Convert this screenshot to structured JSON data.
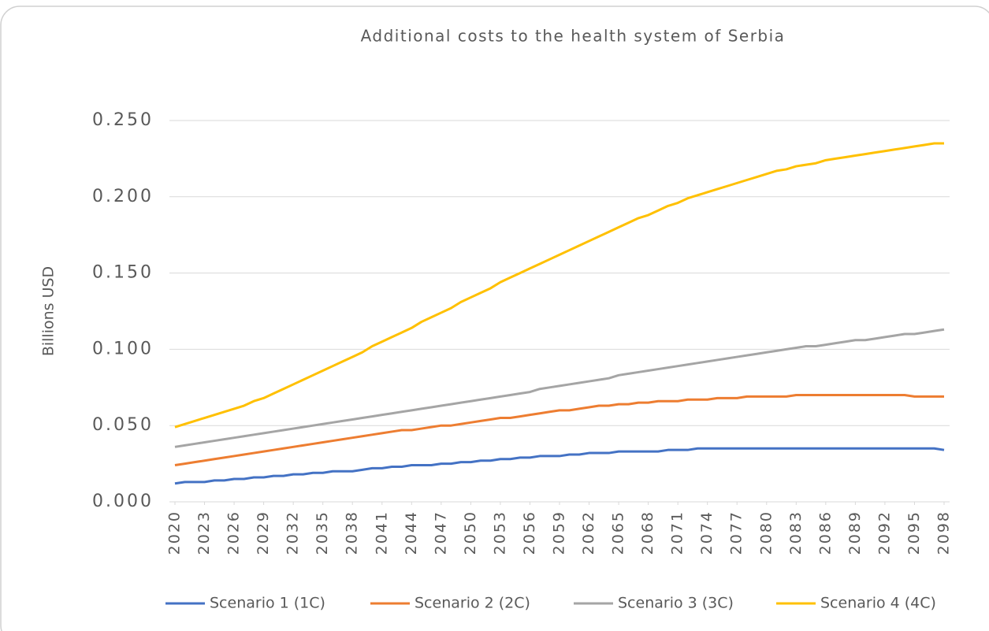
{
  "chart_data": {
    "type": "line",
    "title": "Additional costs to the health system of Serbia",
    "y_label": "Billions USD",
    "x": [
      2020,
      2021,
      2022,
      2023,
      2024,
      2025,
      2026,
      2027,
      2028,
      2029,
      2030,
      2031,
      2032,
      2033,
      2034,
      2035,
      2036,
      2037,
      2038,
      2039,
      2040,
      2041,
      2042,
      2043,
      2044,
      2045,
      2046,
      2047,
      2048,
      2049,
      2050,
      2051,
      2052,
      2053,
      2054,
      2055,
      2056,
      2057,
      2058,
      2059,
      2060,
      2061,
      2062,
      2063,
      2064,
      2065,
      2066,
      2067,
      2068,
      2069,
      2070,
      2071,
      2072,
      2073,
      2074,
      2075,
      2076,
      2077,
      2078,
      2079,
      2080,
      2081,
      2082,
      2083,
      2084,
      2085,
      2086,
      2087,
      2088,
      2089,
      2090,
      2091,
      2092,
      2093,
      2094,
      2095,
      2096,
      2097,
      2098
    ],
    "xlim": [
      2020,
      2098
    ],
    "xticks": [
      2020,
      2023,
      2026,
      2029,
      2032,
      2035,
      2038,
      2041,
      2044,
      2047,
      2050,
      2053,
      2056,
      2059,
      2062,
      2065,
      2068,
      2071,
      2074,
      2077,
      2080,
      2083,
      2086,
      2089,
      2092,
      2095,
      2098
    ],
    "ylim": [
      0,
      0.25
    ],
    "yticks": [
      {
        "value": 0,
        "label": "0.000"
      },
      {
        "value": 0.05,
        "label": "0.050"
      },
      {
        "value": 0.1,
        "label": "0.100"
      },
      {
        "value": 0.15,
        "label": "0.150"
      },
      {
        "value": 0.2,
        "label": "0.200"
      },
      {
        "value": 0.25,
        "label": "0.250"
      }
    ],
    "grid": true,
    "legend": "bottom",
    "series": [
      {
        "name": "Scenario 1 (1C)",
        "color": "#4472c4",
        "values": [
          0.012,
          0.013,
          0.013,
          0.013,
          0.014,
          0.014,
          0.015,
          0.015,
          0.016,
          0.016,
          0.017,
          0.017,
          0.018,
          0.018,
          0.019,
          0.019,
          0.02,
          0.02,
          0.02,
          0.021,
          0.022,
          0.022,
          0.023,
          0.023,
          0.024,
          0.024,
          0.024,
          0.025,
          0.025,
          0.026,
          0.026,
          0.027,
          0.027,
          0.028,
          0.028,
          0.029,
          0.029,
          0.03,
          0.03,
          0.03,
          0.031,
          0.031,
          0.032,
          0.032,
          0.032,
          0.033,
          0.033,
          0.033,
          0.033,
          0.033,
          0.034,
          0.034,
          0.034,
          0.035,
          0.035,
          0.035,
          0.035,
          0.035,
          0.035,
          0.035,
          0.035,
          0.035,
          0.035,
          0.035,
          0.035,
          0.035,
          0.035,
          0.035,
          0.035,
          0.035,
          0.035,
          0.035,
          0.035,
          0.035,
          0.035,
          0.035,
          0.035,
          0.035,
          0.034
        ]
      },
      {
        "name": "Scenario 2 (2C)",
        "color": "#ed7d31",
        "values": [
          0.024,
          0.025,
          0.026,
          0.027,
          0.028,
          0.029,
          0.03,
          0.031,
          0.032,
          0.033,
          0.034,
          0.035,
          0.036,
          0.037,
          0.038,
          0.039,
          0.04,
          0.041,
          0.042,
          0.043,
          0.044,
          0.045,
          0.046,
          0.047,
          0.047,
          0.048,
          0.049,
          0.05,
          0.05,
          0.051,
          0.052,
          0.053,
          0.054,
          0.055,
          0.055,
          0.056,
          0.057,
          0.058,
          0.059,
          0.06,
          0.06,
          0.061,
          0.062,
          0.063,
          0.063,
          0.064,
          0.064,
          0.065,
          0.065,
          0.066,
          0.066,
          0.066,
          0.067,
          0.067,
          0.067,
          0.068,
          0.068,
          0.068,
          0.069,
          0.069,
          0.069,
          0.069,
          0.069,
          0.07,
          0.07,
          0.07,
          0.07,
          0.07,
          0.07,
          0.07,
          0.07,
          0.07,
          0.07,
          0.07,
          0.07,
          0.069,
          0.069,
          0.069,
          0.069
        ]
      },
      {
        "name": "Scenario 3 (3C)",
        "color": "#a5a5a5",
        "values": [
          0.036,
          0.037,
          0.038,
          0.039,
          0.04,
          0.041,
          0.042,
          0.043,
          0.044,
          0.045,
          0.046,
          0.047,
          0.048,
          0.049,
          0.05,
          0.051,
          0.052,
          0.053,
          0.054,
          0.055,
          0.056,
          0.057,
          0.058,
          0.059,
          0.06,
          0.061,
          0.062,
          0.063,
          0.064,
          0.065,
          0.066,
          0.067,
          0.068,
          0.069,
          0.07,
          0.071,
          0.072,
          0.074,
          0.075,
          0.076,
          0.077,
          0.078,
          0.079,
          0.08,
          0.081,
          0.083,
          0.084,
          0.085,
          0.086,
          0.087,
          0.088,
          0.089,
          0.09,
          0.091,
          0.092,
          0.093,
          0.094,
          0.095,
          0.096,
          0.097,
          0.098,
          0.099,
          0.1,
          0.101,
          0.102,
          0.102,
          0.103,
          0.104,
          0.105,
          0.106,
          0.106,
          0.107,
          0.108,
          0.109,
          0.11,
          0.11,
          0.111,
          0.112,
          0.113
        ]
      },
      {
        "name": "Scenario 4 (4C)",
        "color": "#ffc000",
        "values": [
          0.049,
          0.051,
          0.053,
          0.055,
          0.057,
          0.059,
          0.061,
          0.063,
          0.066,
          0.068,
          0.071,
          0.074,
          0.077,
          0.08,
          0.083,
          0.086,
          0.089,
          0.092,
          0.095,
          0.098,
          0.102,
          0.105,
          0.108,
          0.111,
          0.114,
          0.118,
          0.121,
          0.124,
          0.127,
          0.131,
          0.134,
          0.137,
          0.14,
          0.144,
          0.147,
          0.15,
          0.153,
          0.156,
          0.159,
          0.162,
          0.165,
          0.168,
          0.171,
          0.174,
          0.177,
          0.18,
          0.183,
          0.186,
          0.188,
          0.191,
          0.194,
          0.196,
          0.199,
          0.201,
          0.203,
          0.205,
          0.207,
          0.209,
          0.211,
          0.213,
          0.215,
          0.217,
          0.218,
          0.22,
          0.221,
          0.222,
          0.224,
          0.225,
          0.226,
          0.227,
          0.228,
          0.229,
          0.23,
          0.231,
          0.232,
          0.233,
          0.234,
          0.235,
          0.235
        ]
      }
    ]
  }
}
